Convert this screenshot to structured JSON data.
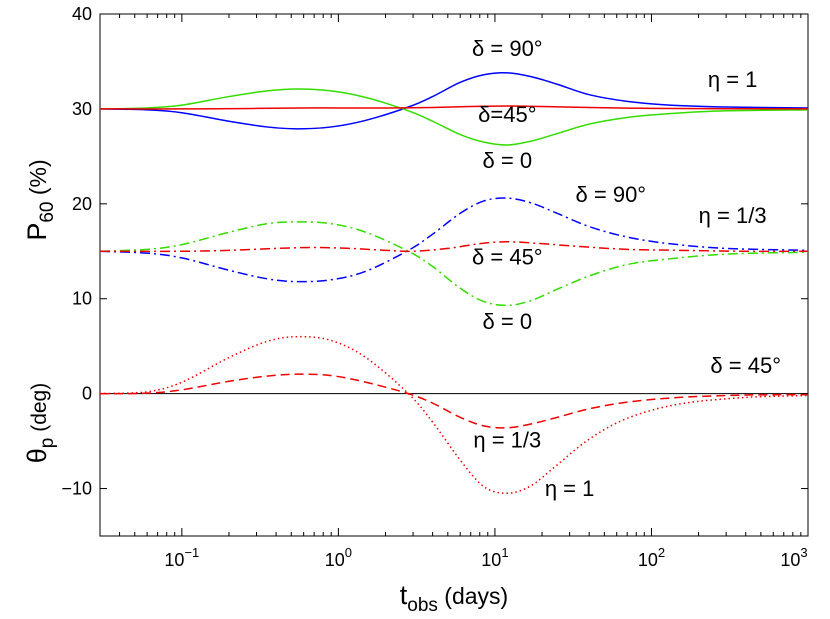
{
  "chart_data": {
    "type": "line",
    "xscale": "log",
    "xlim": [
      0.03,
      1000
    ],
    "ylim": [
      -15,
      40
    ],
    "grid": false,
    "xlabel": {
      "main": "t",
      "sub": "obs",
      "rest": " (days)"
    },
    "ylabel_top": {
      "main": "P",
      "sub": "60",
      "rest": " (%)"
    },
    "ylabel_bottom": {
      "main": "θ",
      "sub": "p",
      "rest": "  (deg)"
    },
    "xticks": [
      {
        "value": 0.1,
        "base": "10",
        "exp": "−1"
      },
      {
        "value": 1,
        "base": "10",
        "exp": "0"
      },
      {
        "value": 10,
        "base": "10",
        "exp": "1"
      },
      {
        "value": 100,
        "base": "10",
        "exp": "2"
      },
      {
        "value": 1000,
        "base": "10",
        "exp": "3"
      }
    ],
    "yticks": [
      {
        "value": -10,
        "label": "−10"
      },
      {
        "value": 0,
        "label": "0"
      },
      {
        "value": 10,
        "label": "10"
      },
      {
        "value": 20,
        "label": "20"
      },
      {
        "value": 30,
        "label": "30"
      },
      {
        "value": 40,
        "label": "40"
      }
    ],
    "zero_line": 0,
    "series": [
      {
        "name": "P60 eta=1 delta=90",
        "color": "#0000ff",
        "style": "solid",
        "x": [
          0.03,
          0.06,
          0.1,
          0.2,
          0.35,
          0.55,
          0.9,
          1.5,
          2.8,
          4,
          6,
          8.5,
          12,
          17,
          25,
          40,
          70,
          130,
          300,
          1000
        ],
        "y": [
          30,
          29.9,
          29.6,
          28.7,
          28.1,
          27.9,
          28.1,
          28.8,
          30.2,
          31.3,
          32.8,
          33.6,
          33.8,
          33.4,
          32.6,
          31.5,
          30.8,
          30.4,
          30.2,
          30.1
        ]
      },
      {
        "name": "P60 eta=1 delta=0",
        "color": "#33dd00",
        "style": "solid",
        "x": [
          0.03,
          0.06,
          0.1,
          0.2,
          0.35,
          0.55,
          0.9,
          1.5,
          2.8,
          4,
          6,
          8.5,
          12,
          17,
          25,
          40,
          70,
          130,
          300,
          1000
        ],
        "y": [
          30,
          30.1,
          30.4,
          31.3,
          31.9,
          32.1,
          31.9,
          31.2,
          29.8,
          28.7,
          27.3,
          26.5,
          26.2,
          26.6,
          27.4,
          28.4,
          29.1,
          29.5,
          29.8,
          29.9
        ]
      },
      {
        "name": "P60 eta=1 delta=45",
        "color": "#ee0000",
        "style": "solid",
        "x": [
          0.03,
          0.1,
          0.3,
          0.6,
          1,
          2,
          4,
          7,
          12,
          20,
          40,
          100,
          300,
          1000
        ],
        "y": [
          30,
          30,
          30.05,
          30.1,
          30.1,
          30.1,
          30.15,
          30.25,
          30.3,
          30.25,
          30.15,
          30.05,
          30.02,
          30
        ]
      },
      {
        "name": "P60 eta=1/3 delta=90",
        "color": "#0000ff",
        "style": "dashdot",
        "x": [
          0.03,
          0.06,
          0.1,
          0.2,
          0.35,
          0.55,
          0.9,
          1.5,
          2.8,
          4,
          6,
          8.5,
          12,
          17,
          25,
          40,
          70,
          130,
          300,
          1000
        ],
        "y": [
          15,
          14.8,
          14.3,
          13,
          12.1,
          11.8,
          12,
          12.9,
          15.1,
          16.8,
          19,
          20.3,
          20.6,
          20.1,
          19,
          17.6,
          16.5,
          15.8,
          15.3,
          15.1
        ]
      },
      {
        "name": "P60 eta=1/3 delta=0",
        "color": "#33dd00",
        "style": "dashdot",
        "x": [
          0.03,
          0.06,
          0.1,
          0.2,
          0.35,
          0.55,
          0.9,
          1.5,
          2.8,
          4,
          6,
          8.5,
          12,
          17,
          25,
          40,
          70,
          130,
          300,
          1000
        ],
        "y": [
          15,
          15.2,
          15.7,
          17,
          17.9,
          18.1,
          17.9,
          17,
          15,
          13.4,
          11.1,
          9.7,
          9.3,
          9.8,
          11,
          12.4,
          13.6,
          14.2,
          14.7,
          14.9
        ]
      },
      {
        "name": "P60 eta=1/3 delta=45",
        "color": "#ee0000",
        "style": "dashdot",
        "x": [
          0.03,
          0.1,
          0.2,
          0.4,
          0.7,
          1.2,
          2,
          3,
          5,
          8,
          12,
          20,
          35,
          70,
          150,
          400,
          1000
        ],
        "y": [
          15,
          15,
          15.1,
          15.3,
          15.4,
          15.3,
          15.1,
          15,
          15.3,
          15.8,
          16,
          15.8,
          15.5,
          15.2,
          15.1,
          15,
          15
        ]
      },
      {
        "name": "theta_p eta=1/3",
        "color": "#ee0000",
        "style": "dashed",
        "x": [
          0.03,
          0.06,
          0.1,
          0.2,
          0.35,
          0.55,
          0.9,
          1.5,
          2.8,
          4,
          6,
          8.5,
          12,
          17,
          25,
          40,
          70,
          150,
          400,
          1000
        ],
        "y": [
          0,
          0.05,
          0.4,
          1.3,
          1.85,
          2.05,
          1.9,
          1.2,
          0,
          -1,
          -2.5,
          -3.4,
          -3.6,
          -3.2,
          -2.5,
          -1.6,
          -0.9,
          -0.4,
          -0.15,
          -0.1
        ]
      },
      {
        "name": "theta_p eta=1",
        "color": "#ee0000",
        "style": "dotted",
        "x": [
          0.03,
          0.06,
          0.1,
          0.2,
          0.35,
          0.55,
          0.9,
          1.5,
          2.8,
          4,
          6,
          8.5,
          12,
          17,
          25,
          40,
          70,
          150,
          400,
          1000
        ],
        "y": [
          0,
          0.2,
          1.2,
          3.8,
          5.5,
          6,
          5.6,
          3.8,
          0,
          -3,
          -7,
          -9.8,
          -10.5,
          -9.7,
          -7.5,
          -4.8,
          -2.6,
          -1.1,
          -0.4,
          -0.2
        ]
      }
    ],
    "annotations": [
      {
        "id": "p1-d90",
        "text": "δ = 90°",
        "x": 12,
        "y": 35.6
      },
      {
        "id": "p1-eta",
        "text": "η = 1",
        "x": 330,
        "y": 32.3
      },
      {
        "id": "p1-d45",
        "text": "δ=45°",
        "x": 12,
        "y": 28.6
      },
      {
        "id": "p1-d0",
        "text": "δ = 0",
        "x": 12,
        "y": 23.8
      },
      {
        "id": "p3-d90",
        "text": "δ = 90°",
        "x": 55,
        "y": 20.2
      },
      {
        "id": "p3-eta",
        "text": "η = 1/3",
        "x": 330,
        "y": 18
      },
      {
        "id": "p3-d45",
        "text": "δ = 45°",
        "x": 12,
        "y": 13.6
      },
      {
        "id": "p3-d0",
        "text": "δ = 0",
        "x": 12,
        "y": 6.8
      },
      {
        "id": "t-d45",
        "text": "δ = 45°",
        "x": 400,
        "y": 2.2
      },
      {
        "id": "t-eta3",
        "text": "η = 1/3",
        "x": 12,
        "y": -5.7
      },
      {
        "id": "t-eta1",
        "text": "η = 1",
        "x": 30,
        "y": -10.8
      }
    ]
  }
}
